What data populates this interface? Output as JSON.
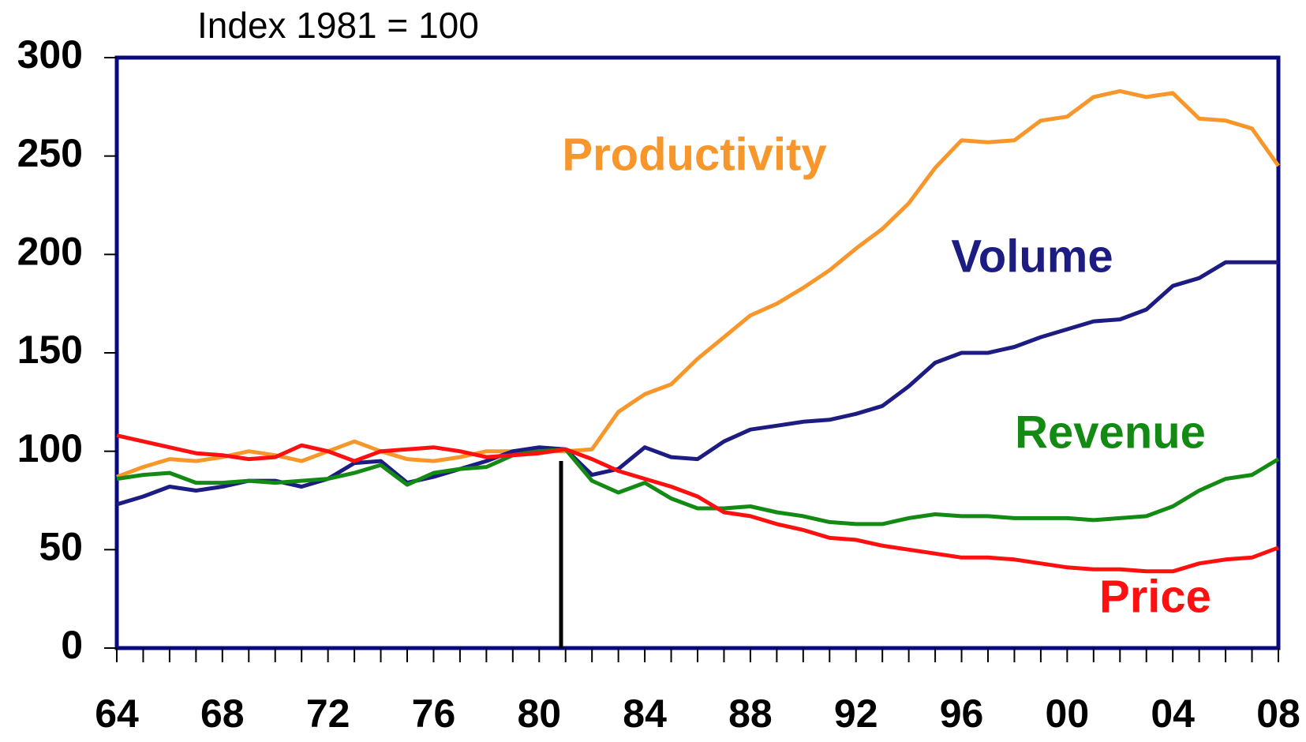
{
  "chart_data": {
    "type": "line",
    "title": "Index 1981 = 100",
    "categories": [
      "64",
      null,
      null,
      null,
      "68",
      null,
      null,
      null,
      "72",
      null,
      null,
      null,
      "76",
      null,
      null,
      null,
      "80",
      null,
      null,
      null,
      "84",
      null,
      null,
      null,
      "88",
      null,
      null,
      null,
      "92",
      null,
      null,
      null,
      "96",
      null,
      null,
      null,
      "00",
      null,
      null,
      null,
      "04",
      null,
      null,
      null,
      "08"
    ],
    "series": [
      {
        "name": "Productivity",
        "color": "#f7962a",
        "values": [
          87,
          92,
          96,
          95,
          97,
          100,
          98,
          95,
          100,
          105,
          100,
          96,
          95,
          97,
          100,
          100,
          100,
          100,
          101,
          120,
          129,
          134,
          147,
          158,
          169,
          175,
          183,
          192,
          203,
          213,
          226,
          244,
          258,
          257,
          258,
          268,
          270,
          280,
          283,
          280,
          282,
          269,
          268,
          264,
          245
        ]
      },
      {
        "name": "Volume",
        "color": "#1c1c82",
        "values": [
          73,
          77,
          82,
          80,
          82,
          85,
          85,
          82,
          86,
          94,
          95,
          84,
          87,
          91,
          95,
          100,
          102,
          101,
          88,
          91,
          102,
          97,
          96,
          105,
          111,
          113,
          115,
          116,
          119,
          123,
          133,
          145,
          150,
          150,
          153,
          158,
          162,
          166,
          167,
          172,
          184,
          188,
          196,
          196,
          196
        ]
      },
      {
        "name": "Revenue",
        "color": "#138a13",
        "values": [
          86,
          88,
          89,
          84,
          84,
          85,
          84,
          85,
          86,
          89,
          93,
          83,
          89,
          91,
          92,
          98,
          100,
          101,
          85,
          79,
          84,
          76,
          71,
          71,
          72,
          69,
          67,
          64,
          63,
          63,
          66,
          68,
          67,
          67,
          66,
          66,
          66,
          65,
          66,
          67,
          72,
          80,
          86,
          88,
          96
        ]
      },
      {
        "name": "Price",
        "color": "#ff1010",
        "values": [
          108,
          105,
          102,
          99,
          98,
          96,
          97,
          103,
          100,
          95,
          100,
          101,
          102,
          100,
          97,
          98,
          99,
          101,
          96,
          90,
          86,
          82,
          77,
          69,
          67,
          63,
          60,
          56,
          55,
          52,
          50,
          48,
          46,
          46,
          45,
          43,
          41,
          40,
          40,
          39,
          39,
          43,
          45,
          46,
          51
        ]
      }
    ],
    "ylim": [
      0,
      300
    ],
    "yticks": [
      0,
      50,
      100,
      150,
      200,
      250,
      300
    ]
  }
}
